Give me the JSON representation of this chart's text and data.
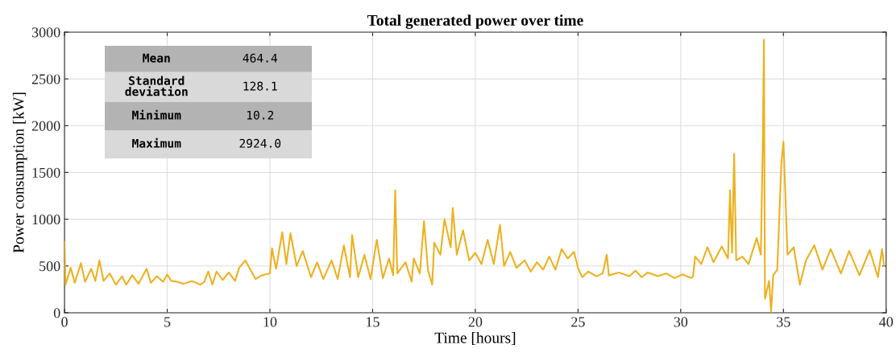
{
  "chart_data": {
    "type": "line",
    "title": "Total generated power over time",
    "xlabel": "Time [hours]",
    "ylabel": "Power consumption [kW]",
    "xlim": [
      0,
      40
    ],
    "xticks": [
      0,
      5,
      10,
      15,
      20,
      25,
      30,
      35,
      40
    ],
    "ylim": [
      0,
      3000
    ],
    "yticks": [
      0,
      500,
      1000,
      1500,
      2000,
      2500,
      3000
    ],
    "grid": true,
    "marker": "none",
    "line_style": "solid",
    "annotations": [
      "Mean",
      "464.4",
      "Standard\ndeviation",
      "128.1",
      "Minimum",
      "10.2",
      "Maximum",
      "2924.0"
    ],
    "series": [
      {
        "color": "#edb120",
        "x": [
          0,
          0.05,
          0.3,
          0.5,
          0.8,
          1.0,
          1.3,
          1.5,
          1.7,
          1.9,
          2.2,
          2.5,
          2.8,
          3.0,
          3.3,
          3.6,
          4.0,
          4.2,
          4.5,
          4.8,
          5.0,
          5.2,
          5.5,
          5.8,
          6.2,
          6.6,
          6.8,
          7.0,
          7.2,
          7.4,
          7.7,
          8.0,
          8.3,
          8.5,
          8.8,
          9.0,
          9.3,
          9.6,
          10.0,
          10.1,
          10.3,
          10.6,
          10.8,
          11.0,
          11.3,
          11.6,
          12.0,
          12.3,
          12.6,
          13.0,
          13.3,
          13.6,
          13.9,
          14.0,
          14.3,
          14.6,
          14.9,
          15.2,
          15.5,
          15.8,
          16.0,
          16.1,
          16.2,
          16.6,
          16.9,
          17.0,
          17.3,
          17.5,
          17.7,
          17.9,
          18.0,
          18.3,
          18.5,
          18.8,
          18.9,
          19.1,
          19.4,
          19.7,
          20.0,
          20.3,
          20.6,
          20.9,
          21.2,
          21.4,
          21.7,
          22.0,
          22.4,
          22.7,
          23.0,
          23.3,
          23.6,
          23.9,
          24.2,
          24.5,
          24.8,
          25.0,
          25.2,
          25.5,
          25.9,
          26.2,
          26.4,
          26.5,
          27.0,
          27.5,
          27.8,
          28.1,
          28.4,
          28.9,
          29.3,
          29.7,
          30.1,
          30.5,
          30.6,
          30.7,
          31.0,
          31.3,
          31.6,
          32.0,
          32.3,
          32.4,
          32.5,
          32.6,
          32.7,
          33.0,
          33.3,
          33.7,
          33.9,
          34.0,
          34.05,
          34.1,
          34.3,
          34.4,
          34.5,
          34.7,
          34.9,
          35.0,
          35.2,
          35.5,
          35.8,
          36.1,
          36.5,
          36.9,
          37.3,
          37.8,
          38.2,
          38.7,
          39.2,
          39.6,
          39.8,
          39.9
        ],
        "values": [
          760,
          300,
          480,
          320,
          530,
          330,
          470,
          340,
          560,
          340,
          420,
          300,
          390,
          300,
          400,
          310,
          470,
          320,
          390,
          330,
          410,
          340,
          330,
          310,
          340,
          300,
          330,
          440,
          300,
          440,
          350,
          430,
          340,
          480,
          560,
          480,
          360,
          400,
          420,
          690,
          470,
          860,
          520,
          850,
          500,
          660,
          380,
          540,
          360,
          560,
          360,
          720,
          380,
          830,
          380,
          620,
          360,
          780,
          370,
          580,
          400,
          1310,
          420,
          540,
          330,
          580,
          420,
          980,
          450,
          300,
          750,
          620,
          1000,
          700,
          1120,
          620,
          880,
          560,
          640,
          520,
          780,
          520,
          940,
          500,
          650,
          480,
          560,
          440,
          540,
          460,
          600,
          460,
          680,
          580,
          650,
          480,
          380,
          440,
          390,
          420,
          620,
          400,
          430,
          390,
          450,
          380,
          430,
          390,
          420,
          370,
          410,
          370,
          390,
          600,
          520,
          700,
          540,
          710,
          580,
          1310,
          640,
          1700,
          560,
          600,
          520,
          800,
          620,
          1880,
          2920,
          150,
          340,
          10,
          400,
          460,
          1600,
          1830,
          620,
          700,
          300,
          560,
          720,
          460,
          680,
          420,
          660,
          400,
          670,
          380,
          680,
          500
        ]
      }
    ]
  }
}
